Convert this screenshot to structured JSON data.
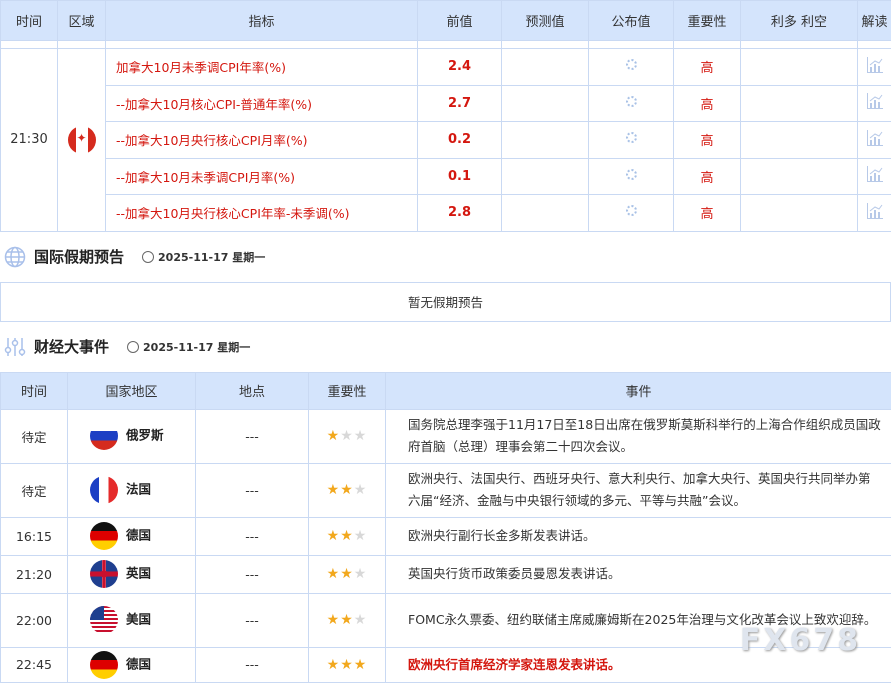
{
  "calendar": {
    "headers": [
      "时间",
      "区域",
      "指标",
      "前值",
      "预测值",
      "公布值",
      "重要性",
      "利多 利空",
      "解读"
    ],
    "time": "21:30",
    "country_flag": "canada-flag",
    "rows": [
      {
        "indicator": "加拿大10月未季调CPI年率(%)",
        "previous": "2.4",
        "forecast": "",
        "actual": "",
        "importance": "高"
      },
      {
        "indicator": "--加拿大10月核心CPI-普通年率(%)",
        "previous": "2.7",
        "forecast": "",
        "actual": "",
        "importance": "高"
      },
      {
        "indicator": "--加拿大10月央行核心CPI月率(%)",
        "previous": "0.2",
        "forecast": "",
        "actual": "",
        "importance": "高"
      },
      {
        "indicator": "--加拿大10月未季调CPI月率(%)",
        "previous": "0.1",
        "forecast": "",
        "actual": "",
        "importance": "高"
      },
      {
        "indicator": "--加拿大10月央行核心CPI年率-未季调(%)",
        "previous": "2.8",
        "forecast": "",
        "actual": "",
        "importance": "高"
      }
    ]
  },
  "holiday": {
    "title": "国际假期预告",
    "date": "2025-11-17 星期一",
    "empty": "暂无假期预告"
  },
  "events": {
    "title": "财经大事件",
    "date": "2025-11-17 星期一",
    "headers": [
      "时间",
      "国家地区",
      "地点",
      "重要性",
      "事件"
    ],
    "rows": [
      {
        "time": "待定",
        "country": "俄罗斯",
        "flag": "ru",
        "place": "---",
        "stars": 1,
        "event": "国务院总理李强于11月17日至18日出席在俄罗斯莫斯科举行的上海合作组织成员国政府首脑（总理）理事会第二十四次会议。",
        "highlight": false
      },
      {
        "time": "待定",
        "country": "法国",
        "flag": "fr",
        "place": "---",
        "stars": 2,
        "event": "欧洲央行、法国央行、西班牙央行、意大利央行、加拿大央行、英国央行共同举办第六届“经济、金融与中央银行领域的多元、平等与共融”会议。",
        "highlight": false
      },
      {
        "time": "16:15",
        "country": "德国",
        "flag": "de",
        "place": "---",
        "stars": 2,
        "event": "欧洲央行副行长金多斯发表讲话。",
        "highlight": false
      },
      {
        "time": "21:20",
        "country": "英国",
        "flag": "gb",
        "place": "---",
        "stars": 2,
        "event": "英国央行货币政策委员曼恩发表讲话。",
        "highlight": false
      },
      {
        "time": "22:00",
        "country": "美国",
        "flag": "us",
        "place": "---",
        "stars": 2,
        "event": "FOMC永久票委、纽约联储主席威廉姆斯在2025年治理与文化改革会议上致欢迎辞。",
        "highlight": false
      },
      {
        "time": "22:45",
        "country": "德国",
        "flag": "de",
        "place": "---",
        "stars": 3,
        "event": "欧洲央行首席经济学家连恩发表讲话。",
        "highlight": true
      }
    ]
  },
  "watermark": "FX678",
  "colors": {
    "header_bg": "#d4e4fc",
    "accent_red": "#d4170f",
    "star": "#f2a81d"
  }
}
